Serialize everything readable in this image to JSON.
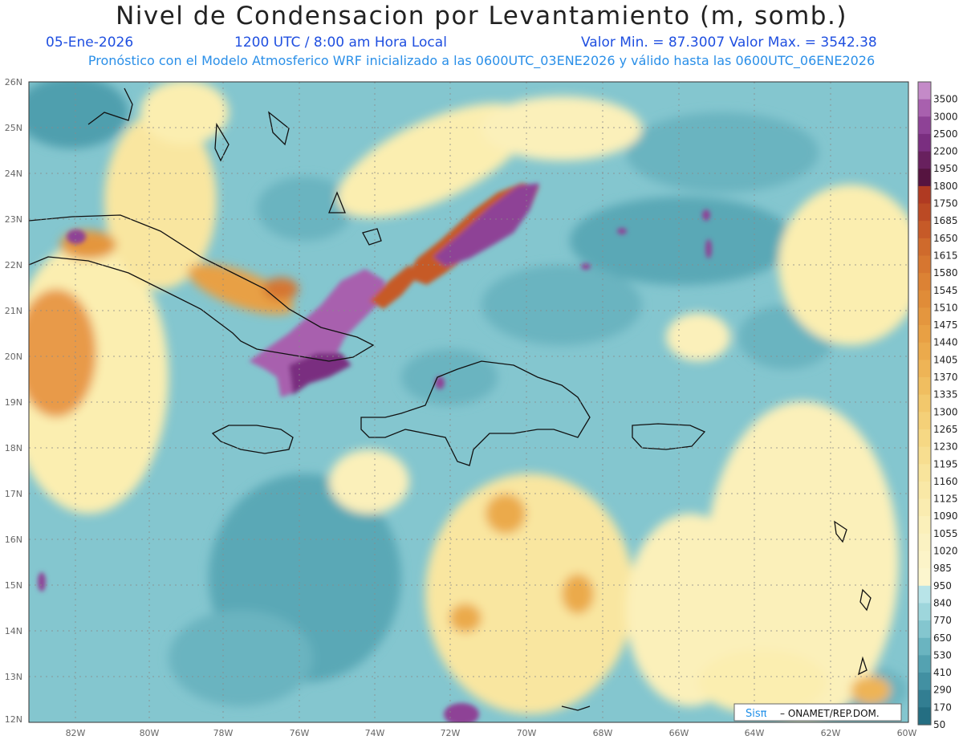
{
  "title": "Nivel de Condensacion por Levantamiento (m, somb.)",
  "date": "05-Ene-2026",
  "time": "1200 UTC / 8:00 am Hora Local",
  "minmax": "Valor Min. = 87.3007  Valor Max. = 3542.38",
  "forecast": "Pronóstico con el Modelo Atmosferico WRF inicializado a las 0600UTC_03ENE2026 y válido hasta las  0600UTC_06ENE2026",
  "credit_logo": "Sisπ",
  "credit": "– ONAMET/REP.DOM.",
  "lat_labels": [
    "26N",
    "25N",
    "24N",
    "23N",
    "22N",
    "21N",
    "20N",
    "19N",
    "18N",
    "17N",
    "16N",
    "15N",
    "14N",
    "13N",
    "12N"
  ],
  "lon_labels": [
    "82W",
    "80W",
    "78W",
    "76W",
    "74W",
    "72W",
    "70W",
    "68W",
    "66W",
    "64W",
    "62W",
    "60W"
  ],
  "colorbar": {
    "labels": [
      "3500",
      "3000",
      "2500",
      "2200",
      "1950",
      "1800",
      "1750",
      "1685",
      "1650",
      "1615",
      "1580",
      "1545",
      "1510",
      "1475",
      "1440",
      "1405",
      "1370",
      "1335",
      "1300",
      "1265",
      "1230",
      "1195",
      "1160",
      "1125",
      "1090",
      "1055",
      "1020",
      "985",
      "950",
      "840",
      "770",
      "650",
      "530",
      "410",
      "290",
      "170",
      "50"
    ],
    "colors": [
      "#c48ac8",
      "#a860ae",
      "#8e4296",
      "#7a2e80",
      "#68205e",
      "#561440",
      "#b03a22",
      "#bb4a24",
      "#c65a28",
      "#cf6a2c",
      "#d67630",
      "#dc8234",
      "#e08c38",
      "#e4963e",
      "#e8a044",
      "#ebaa4c",
      "#eeb456",
      "#f0be60",
      "#f2c86c",
      "#f4d078",
      "#f6d884",
      "#f7de90",
      "#f8e49c",
      "#f9e8a6",
      "#faecb0",
      "#fbf0ba",
      "#fbf2c2",
      "#fcf4c8",
      "#fcf6ce",
      "#b8e4e8",
      "#9ed6dc",
      "#84c6cf",
      "#6ab4c0",
      "#54a2b1",
      "#4290a2",
      "#327e92",
      "#246e82"
    ]
  },
  "colors": {
    "land_ocean_high": "#fbeeb0",
    "orange": "#e89a48",
    "purple": "#8e4296",
    "teal_mid": "#84c6cf",
    "teal_dark": "#4f9fae"
  }
}
